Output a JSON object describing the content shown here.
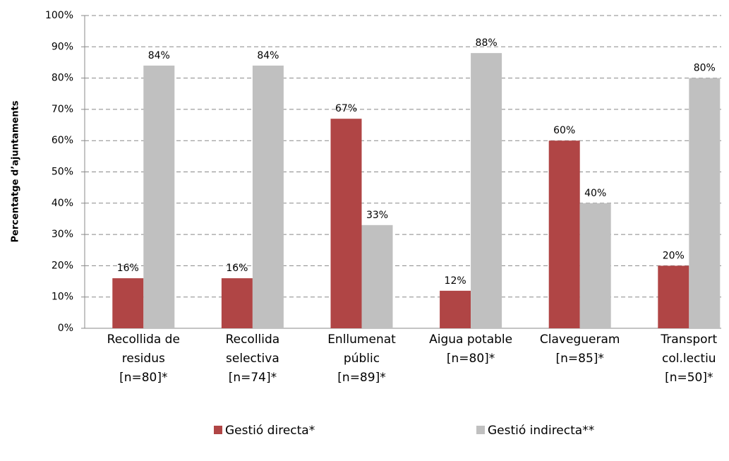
{
  "chart_data": {
    "type": "bar",
    "y_axis_label": "Percentatge d’ajuntaments",
    "categories": [
      [
        "Recollida de",
        "residus",
        "[n=80]*"
      ],
      [
        "Recollida",
        "selectiva",
        "[n=74]*"
      ],
      [
        "Enllumenat",
        "públic",
        "[n=89]*"
      ],
      [
        "Aigua potable",
        "[n=80]*"
      ],
      [
        "Clavegueram",
        "[n=85]*"
      ],
      [
        "Transport",
        "col.lectiu",
        "[n=50]*"
      ]
    ],
    "series": [
      {
        "name": "Gestió directa*",
        "color": "#b04545",
        "values": [
          16,
          16,
          67,
          12,
          60,
          20
        ],
        "value_labels": [
          "16%",
          "16%",
          "67%",
          "12%",
          "60%",
          "20%"
        ]
      },
      {
        "name": "Gestió indirecta**",
        "color": "#c0c0c0",
        "values": [
          84,
          84,
          33,
          88,
          40,
          80
        ],
        "value_labels": [
          "84%",
          "84%",
          "33%",
          "88%",
          "40%",
          "80%"
        ]
      }
    ],
    "ylim": [
      0,
      100
    ],
    "yticks": [
      {
        "value": 0,
        "label": "0%"
      },
      {
        "value": 10,
        "label": "10%"
      },
      {
        "value": 20,
        "label": "20%"
      },
      {
        "value": 30,
        "label": "30%"
      },
      {
        "value": 40,
        "label": "40%"
      },
      {
        "value": 50,
        "label": "50%"
      },
      {
        "value": 60,
        "label": "60%"
      },
      {
        "value": 70,
        "label": "70%"
      },
      {
        "value": 80,
        "label": "80%"
      },
      {
        "value": 90,
        "label": "90%"
      },
      {
        "value": 100,
        "label": "100%"
      }
    ],
    "grid": true,
    "legend": "bottom"
  }
}
